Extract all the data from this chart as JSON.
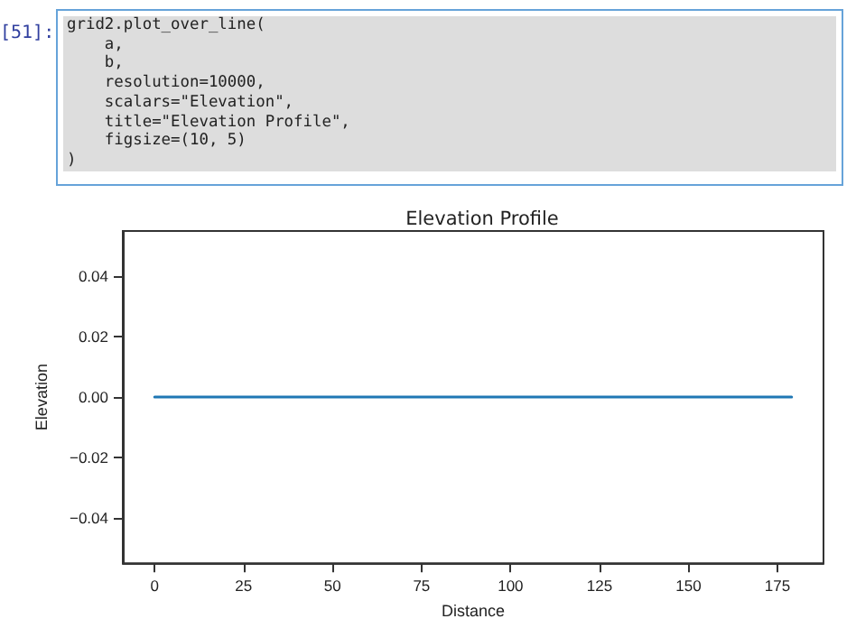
{
  "chart_data": {
    "type": "line",
    "title": "Elevation Profile",
    "xlabel": "Distance",
    "ylabel": "Elevation",
    "annotations": [
      "[51]:",
      "grid2.plot_over_line(\n    a,\n    b,\n    resolution=10000,\n    scalars=\"Elevation\",\n    title=\"Elevation Profile\",\n    figsize=(10, 5)\n)"
    ],
    "x": [
      0,
      179
    ],
    "values": [
      0,
      0
    ],
    "color": "#1f77b4",
    "xlim": [
      -8.95,
      187.95
    ],
    "xticks": [
      0,
      25,
      50,
      75,
      100,
      125,
      150,
      175
    ],
    "ylim": [
      -0.055,
      0.055
    ],
    "yticks": [
      -0.04,
      -0.02,
      {
        "value": 0,
        "label": "0.00"
      },
      0.02,
      0.04
    ],
    "grid": false,
    "marker": "none",
    "line_style": "solid"
  }
}
